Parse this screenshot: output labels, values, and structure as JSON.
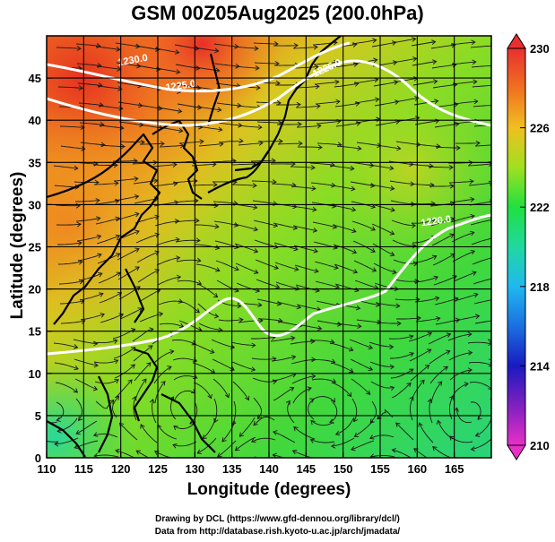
{
  "title": "GSM 00Z05Aug2025 (200.0hPa)",
  "x_axis": {
    "label": "Longitude (degrees)",
    "ticks": [
      "110",
      "115",
      "120",
      "125",
      "130",
      "135",
      "140",
      "145",
      "150",
      "155",
      "160",
      "165"
    ],
    "range": [
      110,
      170
    ]
  },
  "y_axis": {
    "label": "Latitude  (degrees)",
    "ticks": [
      "0",
      "5",
      "10",
      "15",
      "20",
      "25",
      "30",
      "35",
      "40",
      "45"
    ],
    "range": [
      0,
      50
    ]
  },
  "colorbar": {
    "ticks": [
      "210",
      "214",
      "218",
      "222",
      "226",
      "230"
    ],
    "range": [
      210,
      230
    ],
    "colors": [
      "#e830c8",
      "#1a1ac0",
      "#20b8f0",
      "#20e070",
      "#a0e020",
      "#f0c020",
      "#f06020",
      "#e83030"
    ]
  },
  "contours": [
    {
      "label": "1220.0"
    },
    {
      "label": "1225.0"
    },
    {
      "label": "1230.0"
    }
  ],
  "credits": {
    "line1": "Drawing by DCL (https://www.gfd-dennou.org/library/dcl/)",
    "line2": "Data from http://database.rish.kyoto-u.ac.jp/arch/jmadata/"
  }
}
